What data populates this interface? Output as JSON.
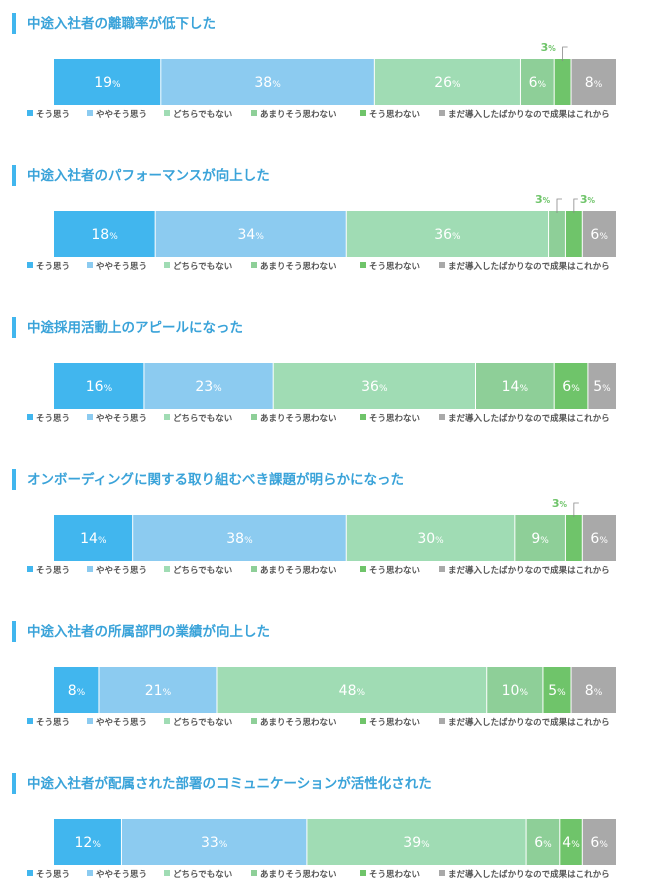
{
  "legend": [
    {
      "label": "そう思う",
      "color": "#41b6ee"
    },
    {
      "label": "ややそう思う",
      "color": "#8ccbf0"
    },
    {
      "label": "どちらでもない",
      "color": "#a0dcb4"
    },
    {
      "label": "あまりそう思わない",
      "color": "#8ecf98"
    },
    {
      "label": "そう思わない",
      "color": "#6fc46a"
    },
    {
      "label": "まだ導入したばかりなので成果はこれから",
      "color": "#a9a9a9"
    }
  ],
  "accent_color": "#41b6ee",
  "title_color": "#3aa3d9",
  "callout_color": "#6fc46a",
  "percent_suffix": "%",
  "chart_data": [
    {
      "type": "bar",
      "orientation": "horizontal-stacked-100",
      "title": "中途入社者の離職率が低下した",
      "values": [
        19,
        38,
        26,
        6,
        3,
        8
      ]
    },
    {
      "type": "bar",
      "orientation": "horizontal-stacked-100",
      "title": "中途入社者のパフォーマンスが向上した",
      "values": [
        18,
        34,
        36,
        3,
        3,
        6
      ]
    },
    {
      "type": "bar",
      "orientation": "horizontal-stacked-100",
      "title": "中途採用活動上のアピールになった",
      "values": [
        16,
        23,
        36,
        14,
        6,
        5
      ]
    },
    {
      "type": "bar",
      "orientation": "horizontal-stacked-100",
      "title": "オンボーディングに関する取り組むべき課題が明らかになった",
      "values": [
        14,
        38,
        30,
        9,
        3,
        6
      ]
    },
    {
      "type": "bar",
      "orientation": "horizontal-stacked-100",
      "title": "中途入社者の所属部門の業績が向上した",
      "values": [
        8,
        21,
        48,
        10,
        5,
        8
      ]
    },
    {
      "type": "bar",
      "orientation": "horizontal-stacked-100",
      "title": "中途入社者が配属された部署のコミュニケーションが活性化された",
      "values": [
        12,
        33,
        39,
        6,
        4,
        6
      ]
    }
  ]
}
